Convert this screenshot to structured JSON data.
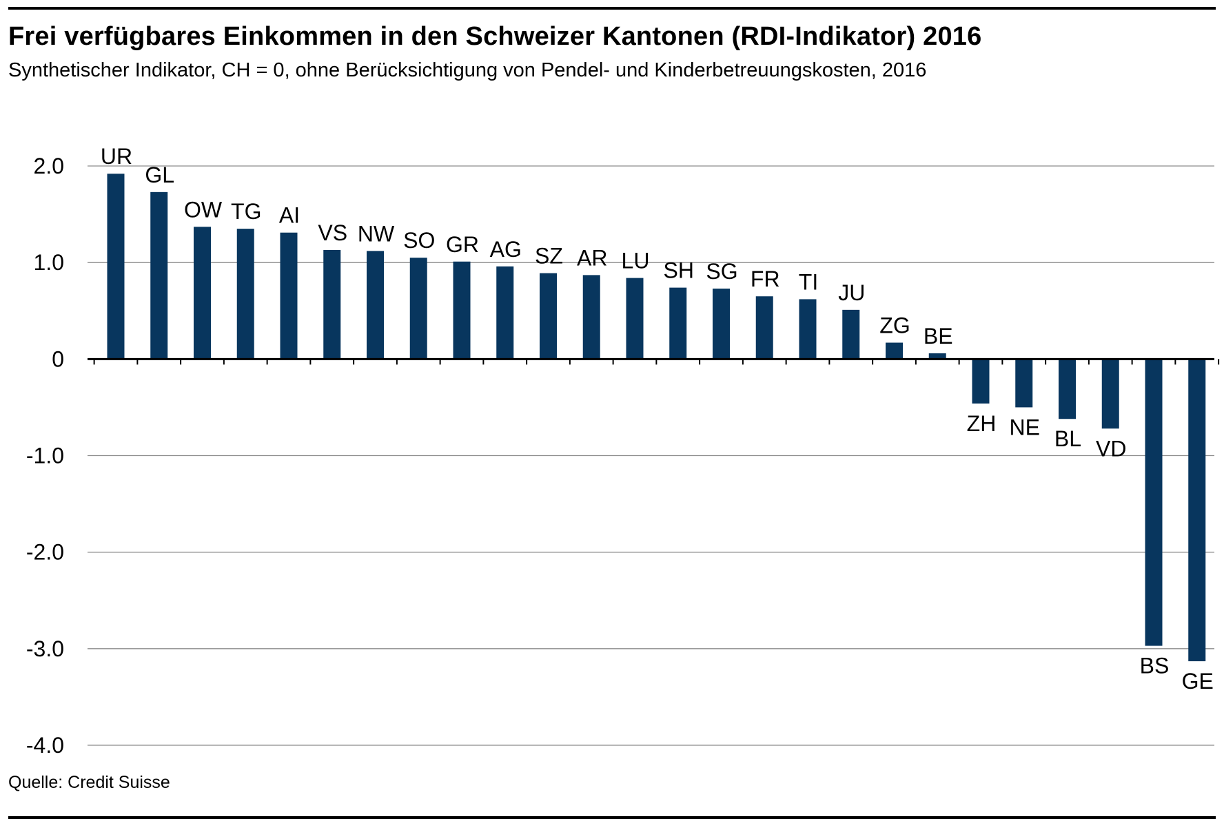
{
  "title": "Frei verfügbares Einkommen in den Schweizer Kantonen (RDI-Indikator) 2016",
  "subtitle": "Synthetischer Indikator, CH = 0, ohne Berücksichtigung von Pendel- und Kinderbetreuungskosten, 2016",
  "source": "Quelle: Credit Suisse",
  "colors": {
    "bar": "#08365e",
    "grid": "#8c8c8c",
    "axis": "#000000"
  },
  "chart_data": {
    "type": "bar",
    "title": "Frei verfügbares Einkommen in den Schweizer Kantonen (RDI-Indikator) 2016",
    "xlabel": "",
    "ylabel": "",
    "ylim": [
      -4.0,
      2.0
    ],
    "grid": true,
    "yticks": [
      2.0,
      1.0,
      0,
      -1.0,
      -2.0,
      -3.0,
      -4.0
    ],
    "ytick_labels": [
      "2.0",
      "1.0",
      "0",
      "-1.0",
      "-2.0",
      "-3.0",
      "-4.0"
    ],
    "categories": [
      "UR",
      "GL",
      "OW",
      "TG",
      "AI",
      "VS",
      "NW",
      "SO",
      "GR",
      "AG",
      "SZ",
      "AR",
      "LU",
      "SH",
      "SG",
      "FR",
      "TI",
      "JU",
      "ZG",
      "BE",
      "ZH",
      "NE",
      "BL",
      "VD",
      "BS",
      "GE"
    ],
    "values": [
      1.92,
      1.73,
      1.37,
      1.35,
      1.31,
      1.13,
      1.12,
      1.05,
      1.01,
      0.96,
      0.89,
      0.87,
      0.84,
      0.74,
      0.73,
      0.65,
      0.62,
      0.51,
      0.17,
      0.06,
      -0.46,
      -0.5,
      -0.62,
      -0.72,
      -2.97,
      -3.13
    ]
  }
}
